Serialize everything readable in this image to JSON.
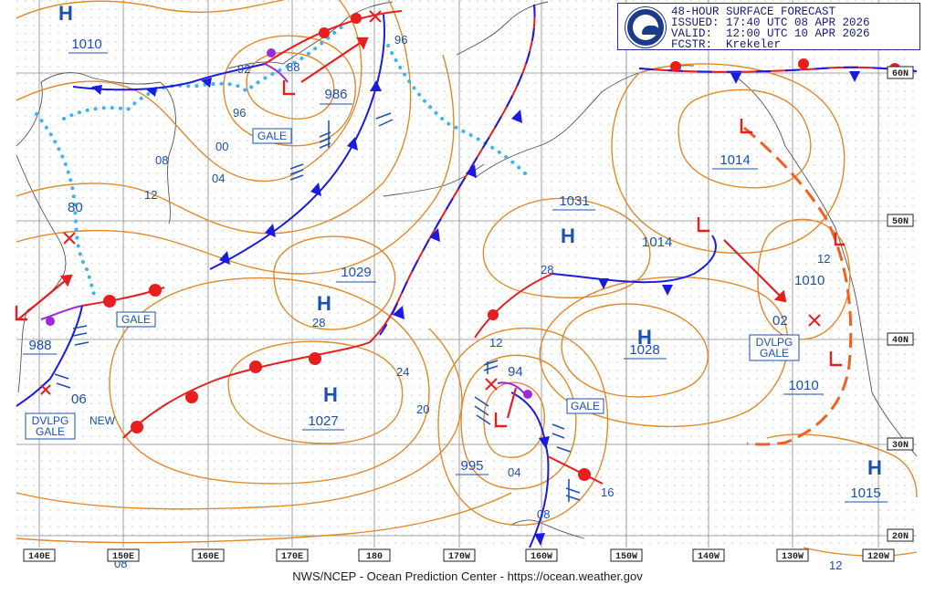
{
  "header": {
    "title": "48-HOUR SURFACE FORECAST",
    "issued": "ISSUED: 17:40 UTC 08 APR 2026",
    "valid": "VALID:  12:00 UTC 10 APR 2026",
    "forecaster": "FCSTR:  Krekeler",
    "logo": "NOAA"
  },
  "footer": "NWS/NCEP - Ocean Prediction Center - https://ocean.weather.gov",
  "colors": {
    "isobar": "#e08a2a",
    "cold_front": "#1a1ae0",
    "warm_front": "#e81e1e",
    "occluded": "#9b2bd6",
    "ice": "#3cb4ee",
    "labels": "#1a4fb3",
    "grid": "#8a8a8a"
  },
  "longitude_labels": [
    "140E",
    "150E",
    "160E",
    "170E",
    "180",
    "170W",
    "160W",
    "150W",
    "140W",
    "130W",
    "120W"
  ],
  "latitude_labels": [
    "60N",
    "50N",
    "40N",
    "30N",
    "20N"
  ],
  "highs": [
    {
      "id": "high-nw",
      "letter": "H",
      "pressure": "1010"
    },
    {
      "id": "high-center",
      "letter": "H",
      "pressure": "1029"
    },
    {
      "id": "high-sw",
      "letter": "H",
      "pressure": "1027"
    },
    {
      "id": "high-ne",
      "letter": "H",
      "pressure": "1031"
    },
    {
      "id": "high-e",
      "letter": "H",
      "pressure": "1028"
    },
    {
      "id": "high-se",
      "letter": "H",
      "pressure": "1015"
    }
  ],
  "lows": [
    {
      "id": "low-bering",
      "pressure": "986"
    },
    {
      "id": "low-japan",
      "pressure": "988"
    },
    {
      "id": "low-central",
      "pressure": "995"
    },
    {
      "id": "low-alaska",
      "pressure": "1014"
    },
    {
      "id": "low-coast",
      "pressure": "1010"
    }
  ],
  "pressure_labels": [
    "96",
    "92",
    "88",
    "96",
    "00",
    "04",
    "08",
    "12",
    "80",
    "06",
    "28",
    "24",
    "20",
    "12",
    "94",
    "04",
    "08",
    "16",
    "28",
    "02",
    "12",
    "1014",
    "1010",
    "08",
    "12"
  ],
  "warnings": [
    {
      "id": "gale-bering",
      "text": "GALE"
    },
    {
      "id": "gale-japan",
      "text": "GALE"
    },
    {
      "id": "gale-central",
      "text": "GALE"
    },
    {
      "id": "dvlpg-gale-coast",
      "text": "DVLPG GALE"
    },
    {
      "id": "dvlpg-gale-japan",
      "text": "DVLPG GALE"
    }
  ],
  "new_label": "NEW"
}
